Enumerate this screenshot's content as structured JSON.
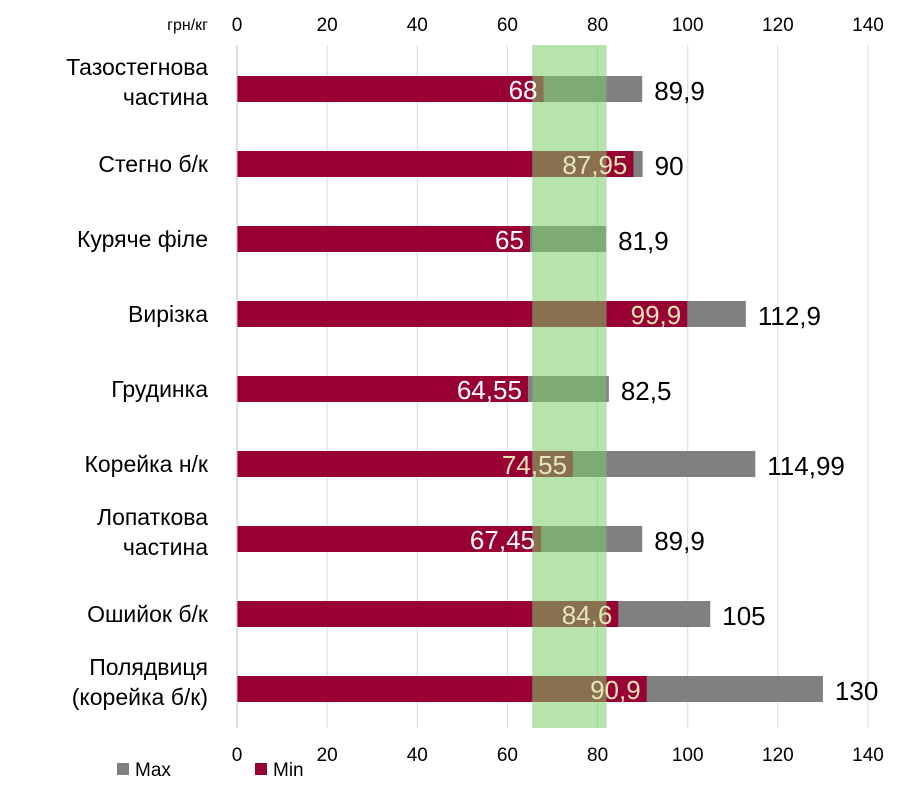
{
  "chart_data": {
    "type": "bar",
    "orientation": "horizontal",
    "unit_label": "грн/кг",
    "categories": [
      [
        "Тазостегнова",
        "частина"
      ],
      [
        "Стегно б/к"
      ],
      [
        "Куряче філе"
      ],
      [
        "Вирізка"
      ],
      [
        "Грудинка"
      ],
      [
        "Корейка н/к"
      ],
      [
        "Лопаткова",
        "частина"
      ],
      [
        "Ошийок б/к"
      ],
      [
        "Полядвиця",
        "(корейка б/к)"
      ]
    ],
    "series": [
      {
        "name": "Max",
        "color": "#808080",
        "values": [
          89.9,
          90,
          81.9,
          112.9,
          82.5,
          114.99,
          89.9,
          105,
          130
        ]
      },
      {
        "name": "Min",
        "color": "#990033",
        "values": [
          68,
          87.95,
          65,
          99.9,
          64.55,
          74.55,
          67.45,
          84.6,
          90.9
        ]
      }
    ],
    "min_labels": [
      "68",
      "87,95",
      "65",
      "99,9",
      "64,55",
      "74,55",
      "67,45",
      "84,6",
      "90,9"
    ],
    "max_labels": [
      "89,9",
      "90",
      "81,9",
      "112,9",
      "82,5",
      "114,99",
      "89,9",
      "105",
      "130"
    ],
    "xlim": [
      0,
      140
    ],
    "x_ticks": [
      "0",
      "20",
      "40",
      "60",
      "80",
      "100",
      "120",
      "140"
    ],
    "highlight_band": {
      "from": 65.5,
      "to": 82,
      "color": "#b3e0a8"
    },
    "grid": true,
    "legend_position": "bottom-left"
  }
}
